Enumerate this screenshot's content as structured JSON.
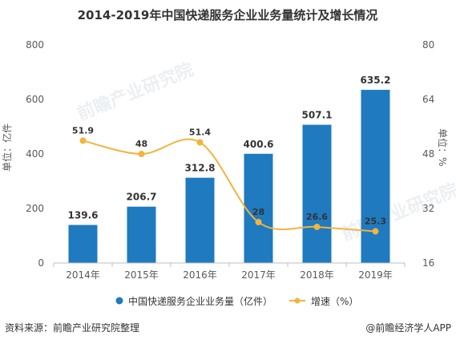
{
  "chart_data": {
    "type": "bar",
    "title": "2014-2019年中国快递服务企业业务量统计及增长情况",
    "categories": [
      "2014年",
      "2015年",
      "2016年",
      "2017年",
      "2018年",
      "2019年"
    ],
    "series": [
      {
        "name": "中国快递服务企业业务量（亿件）",
        "type": "bar",
        "axis": "left",
        "values": [
          139.6,
          206.7,
          312.8,
          400.6,
          507.1,
          635.2
        ]
      },
      {
        "name": "增速（%）",
        "type": "line",
        "axis": "right",
        "values": [
          51.9,
          48,
          51.4,
          28,
          26.6,
          25.3
        ]
      }
    ],
    "ylabel": "单位：亿件",
    "y2label": "单位：%",
    "ylim": [
      0,
      800
    ],
    "y2lim": [
      16,
      80
    ],
    "yticks": [
      0,
      200,
      400,
      600,
      800
    ],
    "y2ticks": [
      16,
      32,
      48,
      64,
      80
    ],
    "grid": false,
    "legend_position": "bottom",
    "colors": {
      "bar": "#1f7ac0",
      "line": "#f2b43c"
    }
  },
  "footer": {
    "source": "资料来源：前瞻产业研究院整理",
    "brand": "@前瞻经济学人APP"
  },
  "watermark": {
    "text": "前瞻产业研究院"
  }
}
